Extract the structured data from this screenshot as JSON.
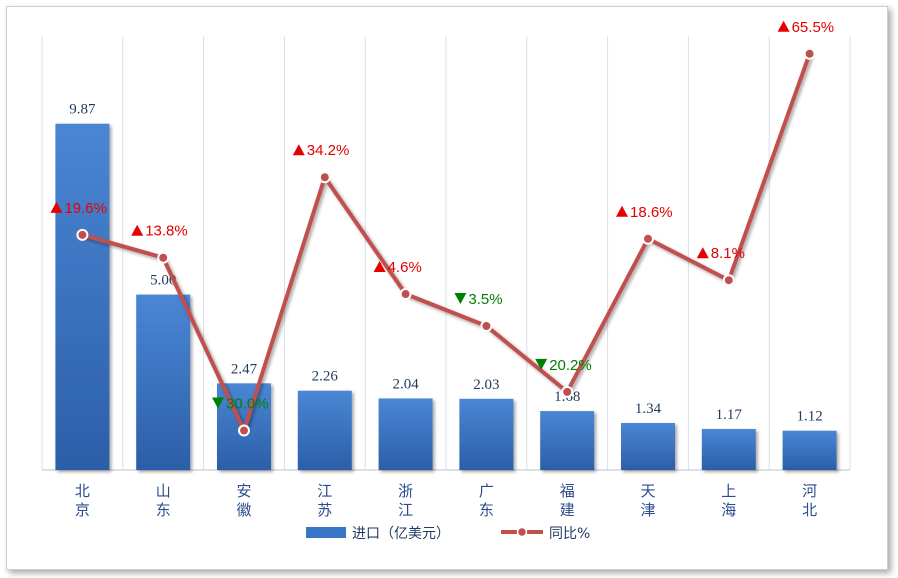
{
  "chart_data": {
    "type": "bar",
    "categories": [
      "北京",
      "山东",
      "安徽",
      "江苏",
      "浙江",
      "广东",
      "福建",
      "天津",
      "上海",
      "河北"
    ],
    "series": [
      {
        "name": "进口（亿美元）",
        "type": "bar",
        "values": [
          9.87,
          5.0,
          2.47,
          2.26,
          2.04,
          2.03,
          1.68,
          1.34,
          1.17,
          1.12
        ],
        "labels": [
          "9.87",
          "5.00",
          "2.47",
          "2.26",
          "2.04",
          "2.03",
          "1.68",
          "1.34",
          "1.17",
          "1.12"
        ],
        "color": "#3a74c4"
      },
      {
        "name": "同比%",
        "type": "line",
        "values": [
          19.6,
          13.8,
          -30.0,
          34.2,
          4.6,
          -3.5,
          -20.2,
          18.6,
          8.1,
          65.5
        ],
        "labels": [
          "19.6%",
          "13.8%",
          "30.0%",
          "34.2%",
          "4.6%",
          "3.5%",
          "20.2%",
          "18.6%",
          "8.1%",
          "65.5%"
        ],
        "directions": [
          "up",
          "up",
          "down",
          "up",
          "up",
          "down",
          "down",
          "up",
          "up",
          "up"
        ],
        "color": "#c0504d"
      }
    ],
    "colors": {
      "up": "#e60000",
      "down": "#008000"
    },
    "legend_position": "bottom",
    "grid": "vertical",
    "y_bar_range": [
      0,
      12.37
    ],
    "y_line_range": [
      -40,
      70
    ]
  }
}
